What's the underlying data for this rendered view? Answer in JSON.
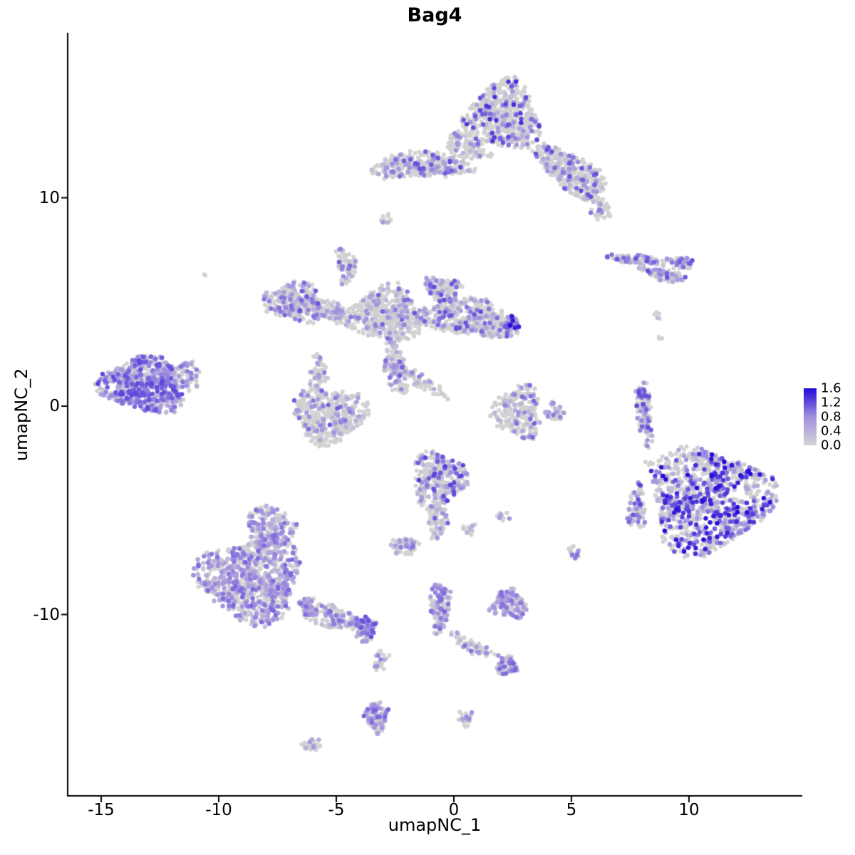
{
  "chart_data": {
    "type": "scatter",
    "title": "Bag4",
    "xlabel": "umapNC_1",
    "ylabel": "umapNC_2",
    "x_ticks": [
      -15,
      -10,
      -5,
      0,
      5,
      10
    ],
    "y_ticks": [
      -10,
      0,
      10
    ],
    "xlim": [
      -16.4,
      14.8
    ],
    "ylim": [
      -18.3,
      17.9
    ],
    "legend": {
      "ticks": [
        "1.6",
        "1.2",
        "0.8",
        "0.4",
        "0.0"
      ],
      "min": 0.0,
      "max": 1.6
    },
    "colors": {
      "grey": "#D2D2D2",
      "low": "#D3D3D3",
      "mid": "#A18FDF",
      "high": "#2209D8"
    },
    "point_radius_px": 3,
    "clusters": {
      "fields": [
        "x",
        "y",
        "rx",
        "ry",
        "rot",
        "n",
        "frac",
        "emax",
        "epow"
      ],
      "rows": [
        [
          2.1,
          13.9,
          1.55,
          1.6,
          0,
          560,
          0.3,
          1.4,
          1.6
        ],
        [
          5.0,
          11.2,
          1.9,
          0.75,
          -40,
          420,
          0.3,
          1.2,
          1.5
        ],
        [
          -1.4,
          11.55,
          2.15,
          0.6,
          2,
          300,
          0.32,
          1.2,
          1.4
        ],
        [
          0.6,
          12.4,
          1.0,
          0.5,
          -25,
          110,
          0.25,
          1.0,
          1.5
        ],
        [
          6.3,
          9.4,
          0.4,
          0.45,
          0,
          40,
          0.3,
          1.0,
          1.5
        ],
        [
          -2.9,
          8.95,
          0.28,
          0.22,
          0,
          11,
          0.3,
          0.8,
          1.2
        ],
        [
          8.4,
          6.95,
          1.75,
          0.22,
          -6,
          130,
          0.45,
          1.2,
          1.2
        ],
        [
          8.9,
          6.3,
          0.95,
          0.25,
          -15,
          70,
          0.45,
          1.2,
          1.2
        ],
        [
          9.9,
          6.85,
          0.3,
          0.25,
          0,
          22,
          0.6,
          1.6,
          1.0
        ],
        [
          8.8,
          4.3,
          0.25,
          0.2,
          0,
          5,
          0.2,
          0.6,
          1.0
        ],
        [
          -6.8,
          5.0,
          1.25,
          0.9,
          -10,
          240,
          0.45,
          1.2,
          1.1
        ],
        [
          -4.6,
          6.8,
          0.38,
          0.85,
          8,
          65,
          0.45,
          1.2,
          1.2
        ],
        [
          -5.4,
          4.6,
          1.1,
          0.45,
          -20,
          130,
          0.3,
          1.0,
          1.4
        ],
        [
          -2.9,
          4.4,
          1.55,
          1.3,
          0,
          420,
          0.28,
          1.1,
          1.6
        ],
        [
          -0.5,
          5.6,
          0.75,
          0.6,
          0,
          130,
          0.4,
          1.2,
          1.2
        ],
        [
          0.6,
          4.2,
          2.1,
          0.85,
          -8,
          430,
          0.35,
          1.2,
          1.4
        ],
        [
          2.35,
          3.95,
          0.4,
          0.35,
          0,
          55,
          0.8,
          1.6,
          1.0
        ],
        [
          -2.5,
          1.8,
          0.5,
          1.3,
          8,
          130,
          0.35,
          1.1,
          1.4
        ],
        [
          -1.3,
          1.1,
          1.05,
          0.32,
          -35,
          55,
          0.25,
          0.9,
          1.3
        ],
        [
          -5.3,
          -0.4,
          1.5,
          1.3,
          0,
          430,
          0.3,
          1.1,
          1.5
        ],
        [
          -5.8,
          1.6,
          0.35,
          0.85,
          0,
          55,
          0.3,
          0.9,
          1.4
        ],
        [
          -13.2,
          1.0,
          1.75,
          1.3,
          -8,
          540,
          0.8,
          1.25,
          0.85
        ],
        [
          -11.5,
          1.45,
          0.8,
          0.6,
          0,
          80,
          0.5,
          1.0,
          1.0
        ],
        [
          2.75,
          -0.3,
          0.95,
          1.25,
          0,
          230,
          0.3,
          1.1,
          1.4
        ],
        [
          4.25,
          -0.3,
          0.45,
          0.4,
          0,
          35,
          0.3,
          1.0,
          1.3
        ],
        [
          8.1,
          -0.3,
          0.3,
          1.55,
          5,
          120,
          0.45,
          1.3,
          1.1
        ],
        [
          8.35,
          -2.75,
          0.2,
          0.15,
          0,
          5,
          0.2,
          0.6,
          1.0
        ],
        [
          10.8,
          -4.5,
          2.6,
          2.5,
          0,
          980,
          0.55,
          1.6,
          1.2
        ],
        [
          7.8,
          -4.9,
          0.4,
          1.05,
          0,
          75,
          0.5,
          1.3,
          1.1
        ],
        [
          -0.65,
          -3.5,
          1.1,
          1.25,
          0,
          310,
          0.45,
          1.3,
          1.3
        ],
        [
          -0.75,
          -5.5,
          0.38,
          0.9,
          0,
          80,
          0.4,
          1.1,
          1.3
        ],
        [
          -2.1,
          -6.7,
          0.55,
          0.38,
          0,
          60,
          0.4,
          1.0,
          1.2
        ],
        [
          0.7,
          -5.9,
          0.3,
          0.25,
          0,
          15,
          0.3,
          0.8,
          1.2
        ],
        [
          2.1,
          -5.3,
          0.3,
          0.25,
          0,
          12,
          0.3,
          0.8,
          1.2
        ],
        [
          -8.6,
          -8.3,
          2.15,
          2.0,
          0,
          800,
          0.6,
          1.05,
          0.9
        ],
        [
          -7.8,
          -5.9,
          1.0,
          1.15,
          0,
          170,
          0.55,
          1.0,
          0.9
        ],
        [
          -5.4,
          -10.0,
          1.35,
          0.55,
          -22,
          170,
          0.5,
          1.0,
          1.0
        ],
        [
          -3.8,
          -10.7,
          0.5,
          0.6,
          0,
          90,
          0.6,
          1.2,
          0.9
        ],
        [
          -3.1,
          -12.1,
          0.28,
          0.6,
          0,
          25,
          0.4,
          0.9,
          1.1
        ],
        [
          -3.3,
          -14.9,
          0.45,
          0.75,
          0,
          110,
          0.55,
          1.1,
          1.0
        ],
        [
          -6.05,
          -16.3,
          0.38,
          0.3,
          0,
          35,
          0.35,
          0.9,
          1.2
        ],
        [
          -0.6,
          -9.6,
          0.42,
          1.15,
          0,
          130,
          0.5,
          1.1,
          1.1
        ],
        [
          0.8,
          -11.5,
          1.1,
          0.28,
          -30,
          60,
          0.4,
          1.0,
          1.2
        ],
        [
          2.3,
          -12.45,
          0.42,
          0.42,
          0,
          60,
          0.6,
          1.1,
          1.0
        ],
        [
          0.5,
          -15.0,
          0.3,
          0.35,
          0,
          25,
          0.35,
          0.9,
          1.2
        ],
        [
          2.35,
          -9.5,
          0.75,
          0.65,
          0,
          120,
          0.65,
          1.0,
          0.9
        ],
        [
          5.1,
          -7.0,
          0.32,
          0.3,
          0,
          20,
          0.5,
          1.0,
          1.0
        ],
        [
          -10.6,
          6.3,
          0.1,
          0.1,
          0,
          2,
          0.0,
          0.0,
          1.0
        ],
        [
          8.8,
          3.3,
          0.15,
          0.12,
          0,
          4,
          0.2,
          0.5,
          1.0
        ]
      ]
    }
  }
}
